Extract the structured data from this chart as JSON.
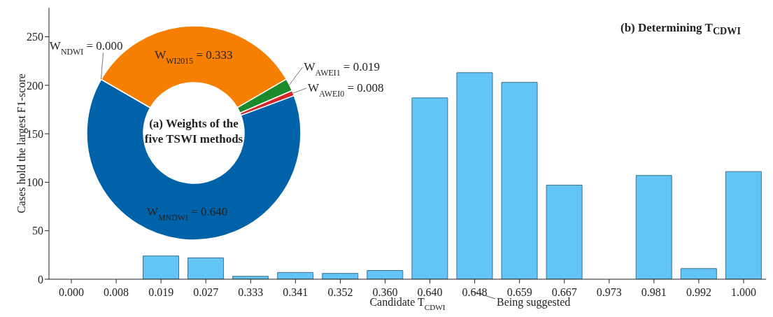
{
  "chart_data": [
    {
      "type": "bar",
      "title": "(b) Determining T$_{CDWI}$",
      "xlabel": "Candidate T$_{CDWI}$",
      "ylabel": "Cases hold the largest F1-score",
      "categories": [
        "0.000",
        "0.008",
        "0.019",
        "0.027",
        "0.333",
        "0.341",
        "0.352",
        "0.360",
        "0.640",
        "0.648",
        "0.659",
        "0.667",
        "0.973",
        "0.981",
        "0.992",
        "1.000"
      ],
      "values": [
        0,
        0,
        24,
        22,
        3,
        7,
        6,
        9,
        187,
        213,
        203,
        97,
        0,
        107,
        11,
        111
      ],
      "color": "#63c5f6",
      "ylim": [
        0,
        280
      ],
      "yticks": [
        0,
        50,
        100,
        150,
        200,
        250
      ],
      "annotations": [
        "Being suggested"
      ]
    },
    {
      "type": "donut",
      "title": "(a) Weights of the five TSWI methods",
      "categories": [
        "W$_{NDWI}$",
        "W$_{WI2015}$",
        "W$_{AWEI1}$",
        "W$_{AWEI0}$",
        "W$_{MNDWI}$"
      ],
      "values": [
        0,
        0.333,
        0.019,
        0.008,
        0.64
      ],
      "value_labels": [
        "= 0.000",
        "= 0.333",
        "= 0.019",
        "= 0.008",
        "= 0.640"
      ],
      "colors": [
        null,
        "#f77f00",
        "#1a8a2a",
        "#d62728",
        "#0062a8"
      ]
    }
  ]
}
